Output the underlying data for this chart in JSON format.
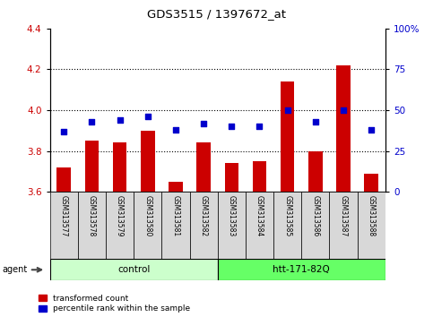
{
  "title": "GDS3515 / 1397672_at",
  "samples": [
    "GSM313577",
    "GSM313578",
    "GSM313579",
    "GSM313580",
    "GSM313581",
    "GSM313582",
    "GSM313583",
    "GSM313584",
    "GSM313585",
    "GSM313586",
    "GSM313587",
    "GSM313588"
  ],
  "red_values": [
    3.72,
    3.85,
    3.84,
    3.9,
    3.65,
    3.84,
    3.74,
    3.75,
    4.14,
    3.8,
    4.22,
    3.69
  ],
  "blue_values": [
    37,
    43,
    44,
    46,
    38,
    42,
    40,
    40,
    50,
    43,
    50,
    38
  ],
  "ylim_left": [
    3.6,
    4.4
  ],
  "ylim_right": [
    0,
    100
  ],
  "yticks_left": [
    3.6,
    3.8,
    4.0,
    4.2,
    4.4
  ],
  "yticks_right": [
    0,
    25,
    50,
    75,
    100
  ],
  "ytick_right_labels": [
    "0",
    "25",
    "50",
    "75",
    "100%"
  ],
  "grid_values": [
    3.8,
    4.0,
    4.2
  ],
  "bar_color": "#cc0000",
  "dot_color": "#0000cc",
  "bar_bottom": 3.6,
  "control_samples": 6,
  "control_label": "control",
  "treatment_label": "htt-171-82Q",
  "agent_label": "agent",
  "legend_red": "transformed count",
  "legend_blue": "percentile rank within the sample",
  "control_color": "#ccffcc",
  "treatment_color": "#66ff66",
  "left_tick_color": "#cc0000",
  "right_tick_color": "#0000cc",
  "tick_label_bg": "#d8d8d8",
  "bar_width": 0.5
}
